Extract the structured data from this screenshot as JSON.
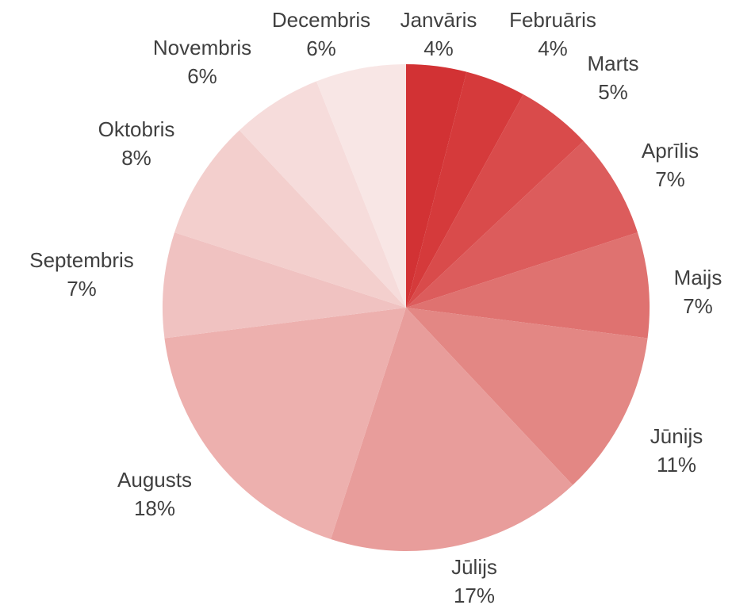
{
  "chart_data": {
    "type": "pie",
    "categories": [
      "Janvāris",
      "Februāris",
      "Marts",
      "Aprīlis",
      "Maijs",
      "Jūnijs",
      "Jūlijs",
      "Augusts",
      "Septembris",
      "Oktobris",
      "Novembris",
      "Decembris"
    ],
    "values": [
      4,
      4,
      5,
      7,
      7,
      11,
      17,
      18,
      7,
      8,
      6,
      6
    ],
    "value_labels": [
      "4%",
      "4%",
      "5%",
      "7%",
      "7%",
      "11%",
      "17%",
      "18%",
      "7%",
      "8%",
      "6%",
      "6%"
    ],
    "colors": [
      "#d23234",
      "#d53a3b",
      "#d94b4b",
      "#dc5c5c",
      "#df7270",
      "#e38784",
      "#e89d9b",
      "#edb0ae",
      "#f0c2c1",
      "#f3cfcd",
      "#f6dcdb",
      "#f8e6e5"
    ]
  }
}
